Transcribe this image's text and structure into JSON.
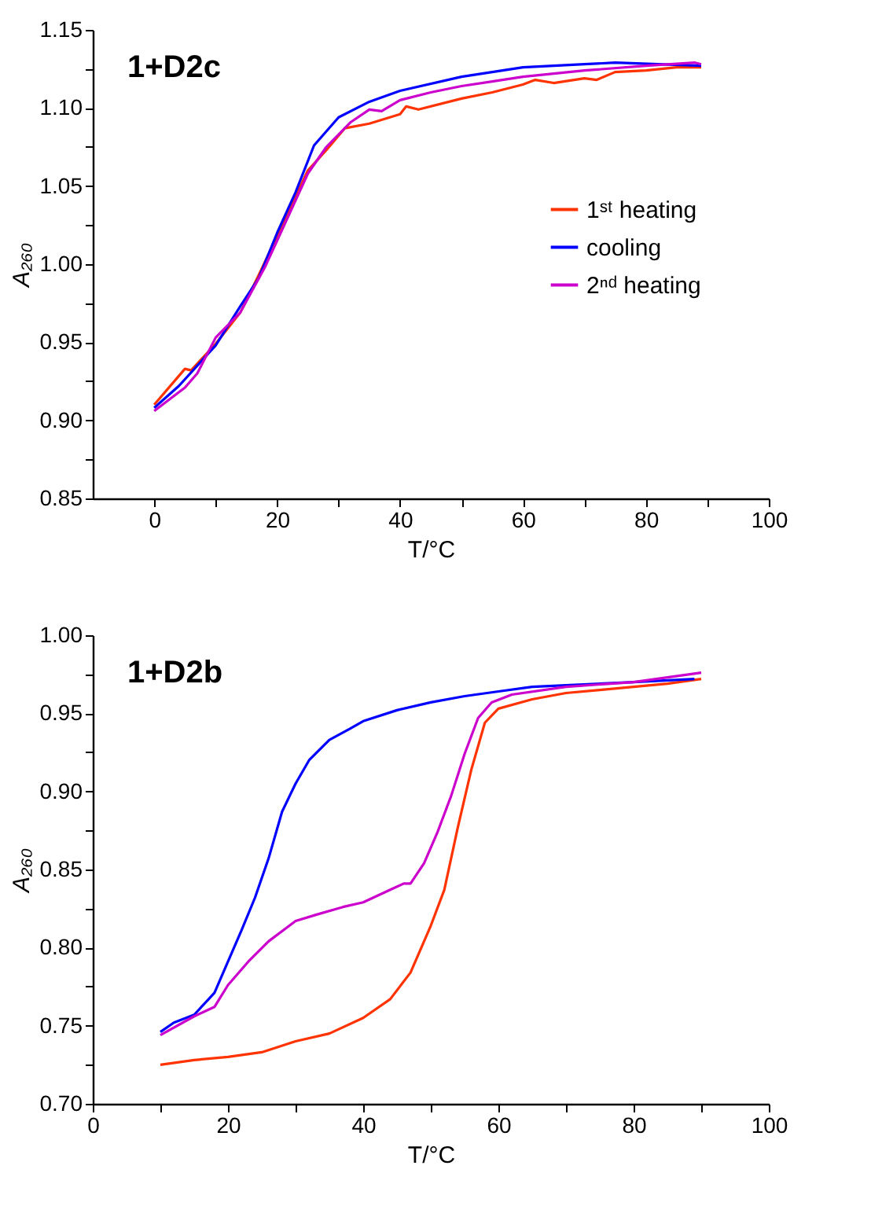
{
  "chart_data": [
    {
      "type": "line",
      "annotations": [
        "1+D2c"
      ],
      "xlabel": "T/°C",
      "ylabel": "A₂₆₀",
      "legend": "right",
      "grid": false,
      "marker": "none",
      "line_style": "solid",
      "xlim": [
        -10,
        100
      ],
      "xticks": [
        0,
        {
          "value": 10,
          "label": null
        },
        20,
        {
          "value": 30,
          "label": null
        },
        40,
        {
          "value": 50,
          "label": null
        },
        60,
        {
          "value": 70,
          "label": null
        },
        80,
        {
          "value": 90,
          "label": null
        },
        100
      ],
      "ylim": [
        0.85,
        1.15
      ],
      "yticks": [
        {
          "value": 0.85,
          "label": "0.85"
        },
        {
          "value": 0.875,
          "label": null
        },
        {
          "value": 0.9,
          "label": "0.90"
        },
        {
          "value": 0.925,
          "label": null
        },
        {
          "value": 0.95,
          "label": "0.95"
        },
        {
          "value": 0.975,
          "label": null
        },
        {
          "value": 1.0,
          "label": "1.00"
        },
        {
          "value": 1.025,
          "label": null
        },
        {
          "value": 1.05,
          "label": "1.05"
        },
        {
          "value": 1.075,
          "label": null
        },
        {
          "value": 1.1,
          "label": "1.10"
        },
        {
          "value": 1.125,
          "label": null
        },
        {
          "value": 1.15,
          "label": "1.15"
        }
      ],
      "series": [
        {
          "name": "1ˢᵗ heating",
          "color": "#ff3300",
          "x": [
            0,
            5,
            6,
            10,
            14,
            17,
            20,
            25,
            28,
            31,
            35,
            40,
            41,
            43,
            50,
            55,
            60,
            62,
            65,
            70,
            72,
            75,
            80,
            85,
            89
          ],
          "values": [
            0.91,
            0.933,
            0.932,
            0.949,
            0.969,
            0.993,
            1.018,
            1.06,
            1.073,
            1.087,
            1.09,
            1.096,
            1.101,
            1.099,
            1.106,
            1.11,
            1.115,
            1.118,
            1.116,
            1.119,
            1.118,
            1.123,
            1.124,
            1.126,
            1.126
          ]
        },
        {
          "name": "cooling",
          "color": "#0000ff",
          "x": [
            0,
            4,
            10,
            14,
            17,
            20,
            23,
            26,
            30,
            35,
            40,
            50,
            60,
            70,
            75,
            82,
            89
          ],
          "values": [
            0.908,
            0.922,
            0.948,
            0.973,
            0.991,
            1.02,
            1.046,
            1.076,
            1.094,
            1.104,
            1.111,
            1.12,
            1.126,
            1.128,
            1.129,
            1.128,
            1.127
          ]
        },
        {
          "name": "2ⁿᵈ heating",
          "color": "#cc00cc",
          "x": [
            0,
            5,
            7,
            10,
            14,
            18,
            20,
            25,
            28,
            32,
            35,
            37,
            40,
            45,
            50,
            55,
            60,
            70,
            80,
            88,
            89
          ],
          "values": [
            0.906,
            0.921,
            0.93,
            0.953,
            0.969,
            0.998,
            1.015,
            1.058,
            1.075,
            1.091,
            1.099,
            1.098,
            1.105,
            1.11,
            1.114,
            1.117,
            1.12,
            1.124,
            1.127,
            1.129,
            1.128
          ]
        }
      ]
    },
    {
      "type": "line",
      "annotations": [
        "1+D2b"
      ],
      "xlabel": "T/°C",
      "ylabel": "A₂₆₀",
      "legend": "right",
      "grid": false,
      "marker": "none",
      "line_style": "solid",
      "xlim": [
        0,
        100
      ],
      "xticks": [
        0,
        {
          "value": 10,
          "label": null
        },
        20,
        {
          "value": 30,
          "label": null
        },
        40,
        {
          "value": 50,
          "label": null
        },
        60,
        {
          "value": 70,
          "label": null
        },
        80,
        {
          "value": 90,
          "label": null
        },
        100
      ],
      "ylim": [
        0.7,
        1.0
      ],
      "yticks": [
        {
          "value": 0.7,
          "label": "0.70"
        },
        {
          "value": 0.725,
          "label": null
        },
        {
          "value": 0.75,
          "label": "0.75"
        },
        {
          "value": 0.775,
          "label": null
        },
        {
          "value": 0.8,
          "label": "0.80"
        },
        {
          "value": 0.825,
          "label": null
        },
        {
          "value": 0.85,
          "label": "0.85"
        },
        {
          "value": 0.875,
          "label": null
        },
        {
          "value": 0.9,
          "label": "0.90"
        },
        {
          "value": 0.925,
          "label": null
        },
        {
          "value": 0.95,
          "label": "0.95"
        },
        {
          "value": 0.975,
          "label": null
        },
        {
          "value": 1.0,
          "label": "1.00"
        }
      ],
      "series": [
        {
          "name": "1ˢᵗ heating",
          "color": "#ff3300",
          "x": [
            10,
            15,
            20,
            25,
            30,
            35,
            40,
            44,
            47,
            50,
            52,
            54,
            56,
            58,
            60,
            65,
            70,
            75,
            80,
            85,
            90
          ],
          "values": [
            0.725,
            0.728,
            0.73,
            0.733,
            0.74,
            0.745,
            0.755,
            0.767,
            0.784,
            0.814,
            0.837,
            0.877,
            0.914,
            0.944,
            0.953,
            0.959,
            0.963,
            0.965,
            0.967,
            0.969,
            0.972
          ]
        },
        {
          "name": "cooling",
          "color": "#0000ff",
          "x": [
            10,
            12,
            15,
            18,
            20,
            22,
            24,
            26,
            28,
            30,
            32,
            35,
            38,
            40,
            45,
            50,
            55,
            60,
            65,
            70,
            80,
            89
          ],
          "values": [
            0.746,
            0.752,
            0.757,
            0.771,
            0.791,
            0.811,
            0.832,
            0.857,
            0.887,
            0.905,
            0.92,
            0.933,
            0.94,
            0.945,
            0.952,
            0.957,
            0.961,
            0.964,
            0.967,
            0.968,
            0.97,
            0.972
          ]
        },
        {
          "name": "2ⁿᵈ heating",
          "color": "#cc00cc",
          "x": [
            10,
            15,
            18,
            20,
            23,
            26,
            30,
            33,
            37,
            40,
            44,
            46,
            47,
            49,
            51,
            53,
            55,
            57,
            59,
            62,
            70,
            80,
            90
          ],
          "values": [
            0.744,
            0.756,
            0.762,
            0.776,
            0.791,
            0.804,
            0.817,
            0.821,
            0.826,
            0.829,
            0.837,
            0.841,
            0.841,
            0.854,
            0.874,
            0.897,
            0.924,
            0.947,
            0.957,
            0.962,
            0.967,
            0.97,
            0.976
          ]
        }
      ]
    }
  ]
}
